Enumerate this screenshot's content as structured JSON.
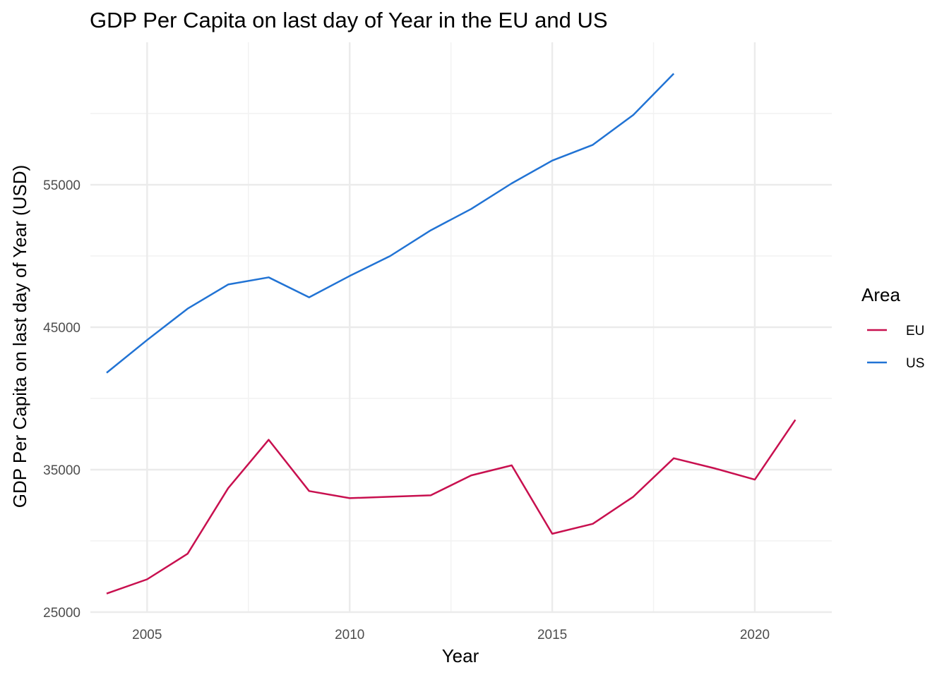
{
  "chart_data": {
    "type": "line",
    "title": "GDP Per Capita on last day of Year in the EU and US",
    "xlabel": "Year",
    "ylabel": "GDP Per Capita on last day of Year (USD)",
    "xlim": [
      2003.6,
      2021.9
    ],
    "ylim": [
      25000,
      65000
    ],
    "x_ticks": [
      2005,
      2010,
      2015,
      2020
    ],
    "x_tick_labels": [
      "2005",
      "2010",
      "2015",
      "2020"
    ],
    "x_minor_ticks": [
      2007.5,
      2012.5,
      2017.5
    ],
    "y_ticks": [
      25000,
      35000,
      45000,
      55000
    ],
    "y_tick_labels": [
      "25000",
      "35000",
      "45000",
      "55000"
    ],
    "y_minor_ticks": [
      30000,
      40000,
      50000,
      60000
    ],
    "grid": true,
    "legend": {
      "title": "Area",
      "position": "right"
    },
    "series": [
      {
        "name": "EU",
        "color": "#c8104f",
        "x": [
          2004,
          2005,
          2006,
          2007,
          2008,
          2009,
          2010,
          2011,
          2012,
          2013,
          2014,
          2015,
          2016,
          2017,
          2018,
          2019,
          2020,
          2021
        ],
        "values": [
          26300,
          27300,
          29100,
          33700,
          37100,
          33500,
          33000,
          33100,
          33200,
          34600,
          35300,
          30500,
          31200,
          33100,
          35800,
          35100,
          34300,
          38500
        ]
      },
      {
        "name": "US",
        "color": "#2173d4",
        "x": [
          2004,
          2005,
          2006,
          2007,
          2008,
          2009,
          2010,
          2011,
          2012,
          2013,
          2014,
          2015,
          2016,
          2017,
          2018
        ],
        "values": [
          41800,
          44100,
          46300,
          48000,
          48500,
          47100,
          48600,
          50000,
          51800,
          53300,
          55100,
          56700,
          57800,
          59900,
          62800
        ]
      }
    ]
  }
}
